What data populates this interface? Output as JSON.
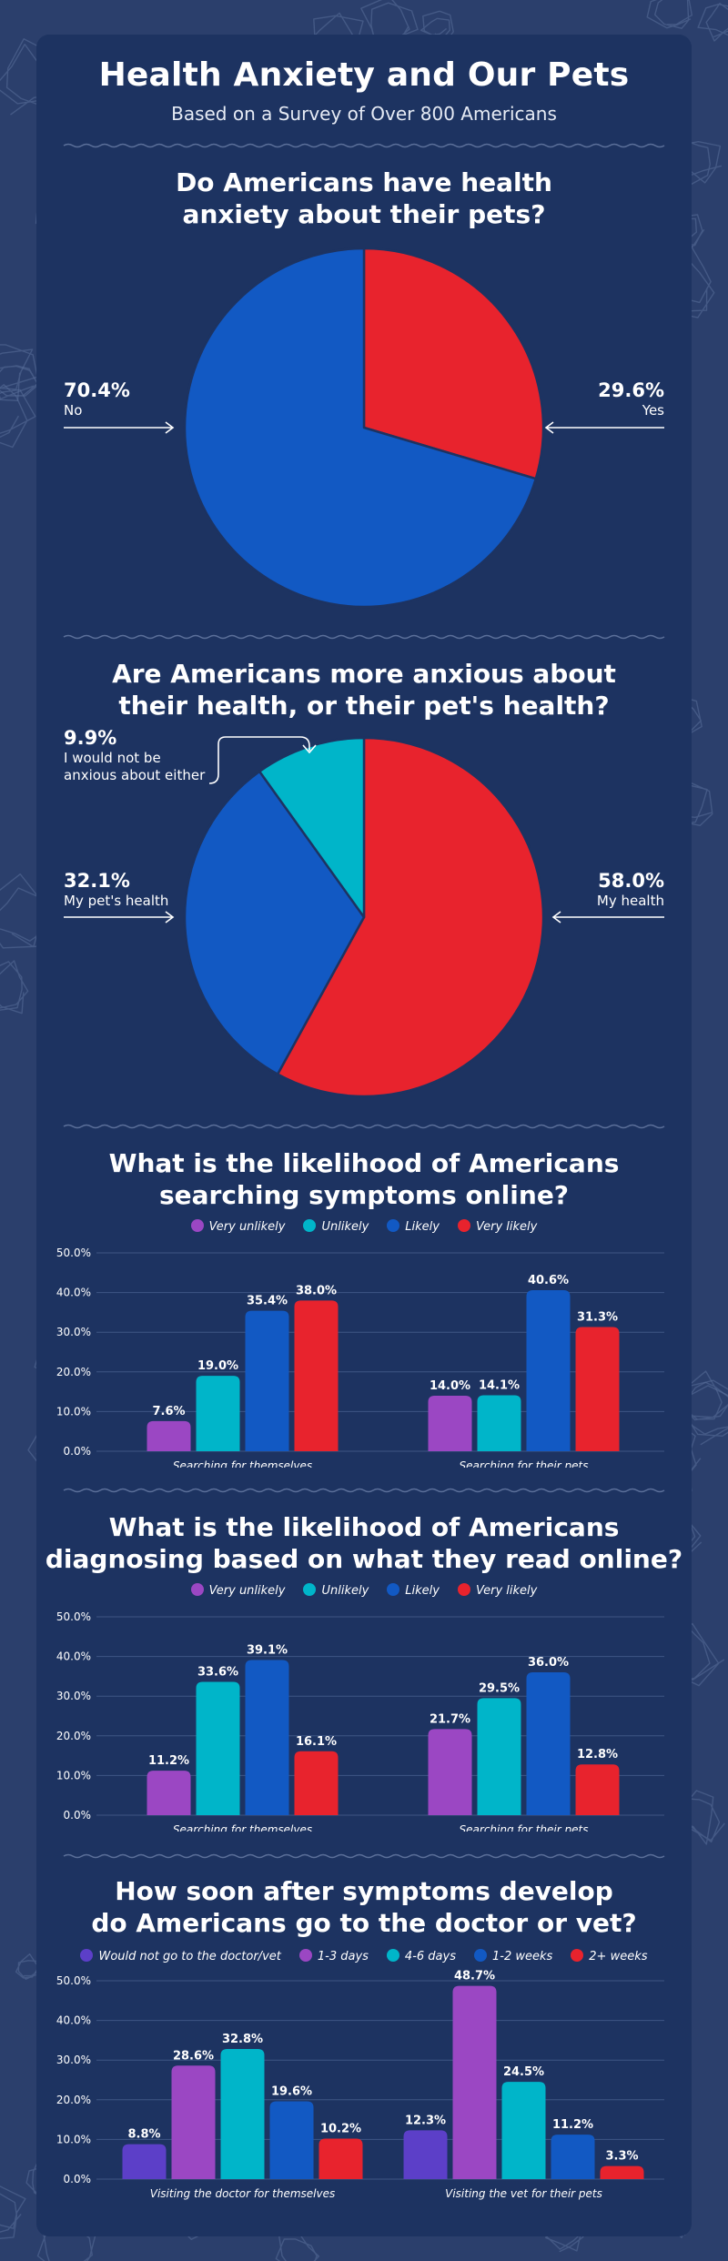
{
  "header": {
    "title": "Health Anxiety and Our Pets",
    "subtitle": "Based on a Survey of Over 800 Americans"
  },
  "colors": {
    "background": "#2b3f6c",
    "card": "#1d3361",
    "red": "#e8232d",
    "blue": "#1259c3",
    "cyan": "#00b5c9",
    "purple": "#9b47c3",
    "violet": "#5c3fc8",
    "grid": "#4a5f8a"
  },
  "chart_data": [
    {
      "type": "pie",
      "title_lines": [
        "Do Americans have health",
        "anxiety about their pets?"
      ],
      "slices": [
        {
          "label": "Yes",
          "value": 29.6,
          "display": "29.6%",
          "color": "#e8232d"
        },
        {
          "label": "No",
          "value": 70.4,
          "display": "70.4%",
          "color": "#1259c3"
        }
      ]
    },
    {
      "type": "pie",
      "title_lines": [
        "Are Americans more anxious about",
        "their health, or their pet's health?"
      ],
      "slices": [
        {
          "label": "My health",
          "value": 58.0,
          "display": "58.0%",
          "color": "#e8232d"
        },
        {
          "label": "My pet's health",
          "value": 32.1,
          "display": "32.1%",
          "color": "#1259c3"
        },
        {
          "label_lines": [
            "I would not be",
            "anxious about either"
          ],
          "value": 9.9,
          "display": "9.9%",
          "color": "#00b5c9"
        }
      ]
    },
    {
      "type": "bar",
      "title_lines": [
        "What is the likelihood of Americans",
        "searching symptoms online?"
      ],
      "ylim": [
        0,
        50
      ],
      "yticks": [
        "0.0%",
        "10.0%",
        "20.0%",
        "30.0%",
        "40.0%",
        "50.0%"
      ],
      "categories": [
        "Searching for themselves",
        "Searching for their pets"
      ],
      "series": [
        {
          "name": "Very unlikely",
          "color": "#9b47c3",
          "values": [
            7.6,
            14.0
          ],
          "labels": [
            "7.6%",
            "14.0%"
          ]
        },
        {
          "name": "Unlikely",
          "color": "#00b5c9",
          "values": [
            19.0,
            14.1
          ],
          "labels": [
            "19.0%",
            "14.1%"
          ]
        },
        {
          "name": "Likely",
          "color": "#1259c3",
          "values": [
            35.4,
            40.6
          ],
          "labels": [
            "35.4%",
            "40.6%"
          ]
        },
        {
          "name": "Very likely",
          "color": "#e8232d",
          "values": [
            38.0,
            31.3
          ],
          "labels": [
            "38.0%",
            "31.3%"
          ]
        }
      ]
    },
    {
      "type": "bar",
      "title_lines": [
        "What is the likelihood of Americans",
        "diagnosing based on what they read online?"
      ],
      "ylim": [
        0,
        50
      ],
      "yticks": [
        "0.0%",
        "10.0%",
        "20.0%",
        "30.0%",
        "40.0%",
        "50.0%"
      ],
      "categories": [
        "Searching for themselves",
        "Searching for their pets"
      ],
      "series": [
        {
          "name": "Very unlikely",
          "color": "#9b47c3",
          "values": [
            11.2,
            21.7
          ],
          "labels": [
            "11.2%",
            "21.7%"
          ]
        },
        {
          "name": "Unlikely",
          "color": "#00b5c9",
          "values": [
            33.6,
            29.5
          ],
          "labels": [
            "33.6%",
            "29.5%"
          ]
        },
        {
          "name": "Likely",
          "color": "#1259c3",
          "values": [
            39.1,
            36.0
          ],
          "labels": [
            "39.1%",
            "36.0%"
          ]
        },
        {
          "name": "Very likely",
          "color": "#e8232d",
          "values": [
            16.1,
            12.8
          ],
          "labels": [
            "16.1%",
            "12.8%"
          ]
        }
      ]
    },
    {
      "type": "bar",
      "title_lines": [
        "How soon after symptoms develop",
        "do Americans go to the doctor or vet?"
      ],
      "ylim": [
        0,
        50
      ],
      "yticks": [
        "0.0%",
        "10.0%",
        "20.0%",
        "30.0%",
        "40.0%",
        "50.0%"
      ],
      "categories": [
        "Visiting the doctor for themselves",
        "Visiting the vet for their pets"
      ],
      "series": [
        {
          "name": "Would not go to the doctor/vet",
          "color": "#5c3fc8",
          "values": [
            8.8,
            12.3
          ],
          "labels": [
            "8.8%",
            "12.3%"
          ]
        },
        {
          "name": "1-3 days",
          "color": "#9b47c3",
          "values": [
            28.6,
            48.7
          ],
          "labels": [
            "28.6%",
            "48.7%"
          ]
        },
        {
          "name": "4-6 days",
          "color": "#00b5c9",
          "values": [
            32.8,
            24.5
          ],
          "labels": [
            "32.8%",
            "24.5%"
          ]
        },
        {
          "name": "1-2 weeks",
          "color": "#1259c3",
          "values": [
            19.6,
            11.2
          ],
          "labels": [
            "19.6%",
            "11.2%"
          ]
        },
        {
          "name": "2+ weeks",
          "color": "#e8232d",
          "values": [
            10.2,
            3.3
          ],
          "labels": [
            "10.2%",
            "3.3%"
          ]
        }
      ]
    }
  ]
}
